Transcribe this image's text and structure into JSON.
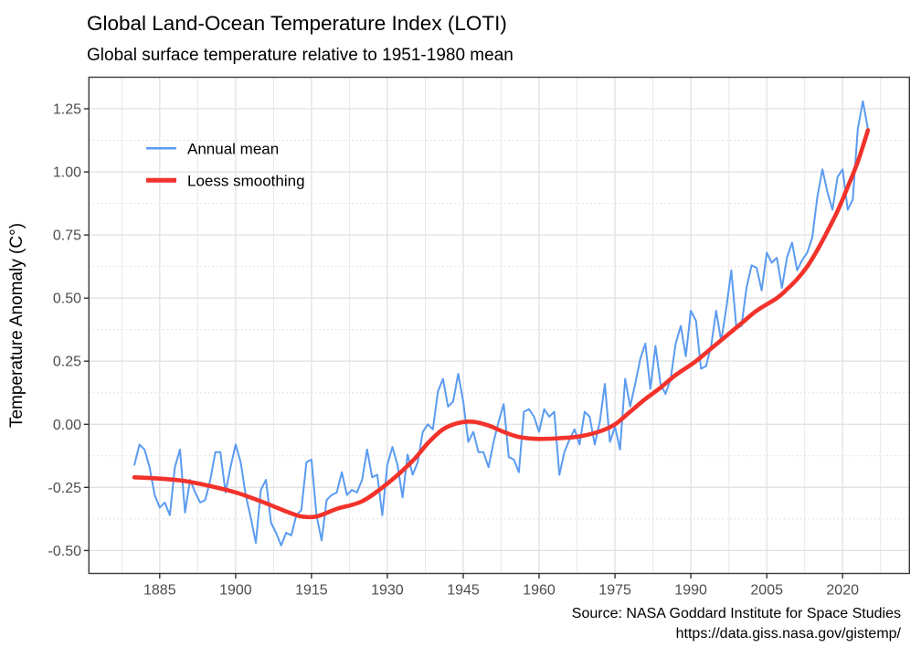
{
  "header": {
    "title": "Global Land-Ocean Temperature Index (LOTI)",
    "subtitle": "Global surface temperature relative to 1951-1980 mean"
  },
  "caption": {
    "source_line": "Source: NASA Goddard Institute for Space Studies",
    "url_line": "https://data.giss.nasa.gov/gistemp/"
  },
  "chart_data": {
    "type": "line",
    "title": "Global Land-Ocean Temperature Index (LOTI)",
    "subtitle": "Global surface temperature relative to 1951-1980 mean",
    "xlabel": "",
    "ylabel": "Temperature Anomaly (C°)",
    "x_domain": [
      1871,
      2033.2
    ],
    "y_domain": [
      -0.591,
      1.375
    ],
    "x_ticks": [
      1885,
      1900,
      1915,
      1930,
      1945,
      1960,
      1975,
      1990,
      2005,
      2020
    ],
    "y_tick_labels": [
      "-0.50",
      "-0.25",
      "0.00",
      "0.25",
      "0.50",
      "0.75",
      "1.00",
      "1.25"
    ],
    "grid": "major solid, minor dotted horizontal",
    "legend_position": "inside top-left",
    "colors": {
      "annual": "#5B9BF0",
      "loess": "#F2322B",
      "grid_major": "#E2E2E2",
      "grid_minor": "#E9E9E9",
      "grid_minor_dotted": "#D8D8D8",
      "panel_border": "#3A3A3A",
      "tick": "#333333",
      "tick_text": "#4D4D4D"
    },
    "legend": {
      "entries": [
        {
          "label": "Annual mean",
          "color": "#5B9BF0"
        },
        {
          "label": "Loess smoothing",
          "color": "#F2322B"
        }
      ]
    },
    "series": [
      {
        "name": "Annual mean",
        "kind": "jagged",
        "year_start": 1880,
        "year_end": 2025,
        "values": [
          -0.16,
          -0.08,
          -0.1,
          -0.17,
          -0.28,
          -0.33,
          -0.31,
          -0.36,
          -0.17,
          -0.1,
          -0.35,
          -0.22,
          -0.27,
          -0.31,
          -0.3,
          -0.22,
          -0.11,
          -0.11,
          -0.27,
          -0.17,
          -0.08,
          -0.15,
          -0.28,
          -0.37,
          -0.47,
          -0.26,
          -0.22,
          -0.39,
          -0.43,
          -0.48,
          -0.43,
          -0.44,
          -0.36,
          -0.34,
          -0.15,
          -0.14,
          -0.36,
          -0.46,
          -0.3,
          -0.28,
          -0.27,
          -0.19,
          -0.28,
          -0.26,
          -0.27,
          -0.22,
          -0.1,
          -0.21,
          -0.2,
          -0.36,
          -0.16,
          -0.09,
          -0.16,
          -0.29,
          -0.12,
          -0.2,
          -0.15,
          -0.03,
          0.0,
          -0.02,
          0.13,
          0.18,
          0.07,
          0.09,
          0.2,
          0.09,
          -0.07,
          -0.03,
          -0.11,
          -0.11,
          -0.17,
          -0.07,
          0.01,
          0.08,
          -0.13,
          -0.14,
          -0.19,
          0.05,
          0.06,
          0.03,
          -0.03,
          0.06,
          0.03,
          0.05,
          -0.2,
          -0.11,
          -0.06,
          -0.02,
          -0.08,
          0.05,
          0.03,
          -0.08,
          0.01,
          0.16,
          -0.07,
          -0.01,
          -0.1,
          0.18,
          0.07,
          0.16,
          0.26,
          0.32,
          0.14,
          0.31,
          0.16,
          0.12,
          0.18,
          0.32,
          0.39,
          0.27,
          0.45,
          0.41,
          0.22,
          0.23,
          0.31,
          0.45,
          0.33,
          0.46,
          0.61,
          0.38,
          0.39,
          0.54,
          0.63,
          0.62,
          0.53,
          0.68,
          0.64,
          0.66,
          0.54,
          0.66,
          0.72,
          0.61,
          0.65,
          0.68,
          0.74,
          0.9,
          1.01,
          0.92,
          0.85,
          0.98,
          1.01,
          0.85,
          0.89,
          1.17,
          1.28,
          1.17
        ]
      },
      {
        "name": "Loess smoothing",
        "kind": "smooth",
        "x": [
          1880,
          1885,
          1890,
          1895,
          1900,
          1905,
          1910,
          1913,
          1916,
          1920,
          1925,
          1930,
          1935,
          1938,
          1941,
          1944,
          1947,
          1950,
          1953,
          1956,
          1960,
          1964,
          1968,
          1972,
          1975,
          1978,
          1981,
          1984,
          1987,
          1991,
          1994,
          1997,
          2000,
          2003,
          2007,
          2009,
          2011,
          2013,
          2015,
          2017,
          2019,
          2021,
          2023,
          2025
        ],
        "y": [
          -0.21,
          -0.215,
          -0.225,
          -0.245,
          -0.27,
          -0.305,
          -0.345,
          -0.365,
          -0.365,
          -0.335,
          -0.305,
          -0.235,
          -0.145,
          -0.075,
          -0.02,
          0.005,
          0.01,
          -0.005,
          -0.03,
          -0.05,
          -0.058,
          -0.055,
          -0.048,
          -0.028,
          0.0,
          0.05,
          0.1,
          0.145,
          0.195,
          0.25,
          0.3,
          0.35,
          0.4,
          0.45,
          0.5,
          0.535,
          0.575,
          0.625,
          0.69,
          0.765,
          0.845,
          0.94,
          1.04,
          1.165
        ]
      }
    ]
  }
}
